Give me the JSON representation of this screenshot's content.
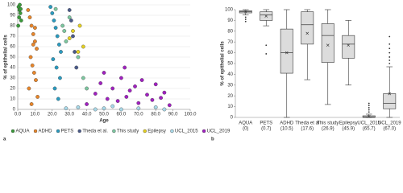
{
  "chart_data": [
    {
      "type": "scatter",
      "panel_label": "a",
      "x_label": "Age",
      "y_label": "% of epithelial cells",
      "xlim": [
        0,
        100
      ],
      "ylim": [
        0,
        100
      ],
      "xticks": [
        {
          "value": 0,
          "label": "0.0"
        },
        {
          "value": 10,
          "label": "10.0"
        },
        {
          "value": 20,
          "label": "20.0"
        },
        {
          "value": 30,
          "label": "30.0"
        },
        {
          "value": 40,
          "label": "40.0"
        },
        {
          "value": 50,
          "label": "50.0"
        },
        {
          "value": 60,
          "label": "60.0"
        },
        {
          "value": 70,
          "label": "70.0"
        },
        {
          "value": 80,
          "label": "80.0"
        },
        {
          "value": 90,
          "label": "90.0"
        },
        {
          "value": 100,
          "label": "100.0"
        }
      ],
      "yticks": [
        0,
        10,
        20,
        30,
        40,
        50,
        60,
        70,
        80,
        90,
        100
      ],
      "series": [
        {
          "name": "AQUA",
          "color": "#3a9a3a",
          "x": [
            0.5,
            1,
            1.5,
            0.8,
            1.2,
            2,
            0.3,
            1.7
          ],
          "y": [
            98,
            95,
            92,
            88,
            100,
            85,
            80,
            96
          ]
        },
        {
          "name": "ADHD",
          "color": "#e8862a",
          "x": [
            6,
            7,
            8,
            9,
            10,
            11,
            7.5,
            8.5,
            9.5,
            10.5,
            6.5,
            11.5,
            8,
            9,
            10
          ],
          "y": [
            95,
            88,
            80,
            72,
            65,
            58,
            50,
            42,
            35,
            28,
            20,
            12,
            5,
            62,
            78
          ]
        },
        {
          "name": "PETS",
          "color": "#2a9bc0",
          "x": [
            19,
            20,
            21,
            22,
            23,
            24,
            25,
            20.5,
            22.5,
            24.5,
            21.5,
            23.5
          ],
          "y": [
            98,
            92,
            85,
            78,
            70,
            62,
            55,
            48,
            40,
            30,
            20,
            10
          ]
        },
        {
          "name": "Theda et al.",
          "color": "#4a5a8a",
          "x": [
            30,
            31,
            32,
            33,
            34
          ],
          "y": [
            95,
            85,
            70,
            55,
            40
          ]
        },
        {
          "name": "This study",
          "color": "#7cc7a0",
          "x": [
            22,
            26,
            28,
            30,
            35,
            38,
            40,
            27
          ],
          "y": [
            96,
            80,
            65,
            88,
            50,
            30,
            20,
            75
          ]
        },
        {
          "name": "Epilepsy",
          "color": "#e5d020",
          "x": [
            30,
            32,
            35,
            36,
            38
          ],
          "y": [
            68,
            75,
            55,
            80,
            60
          ]
        },
        {
          "name": "UCL_2015",
          "color": "#a8d8e8",
          "x": [
            28,
            35,
            45,
            50,
            55,
            60,
            70,
            80,
            85
          ],
          "y": [
            1,
            2,
            0,
            1,
            3,
            0,
            1,
            2,
            0
          ]
        },
        {
          "name": "UCL_2019",
          "color": "#a020c0",
          "x": [
            40,
            45,
            48,
            52,
            55,
            58,
            60,
            63,
            65,
            68,
            70,
            72,
            75,
            78,
            80,
            83,
            85,
            88,
            50,
            62
          ],
          "y": [
            5,
            15,
            25,
            10,
            20,
            8,
            30,
            12,
            18,
            22,
            6,
            28,
            14,
            9,
            24,
            11,
            16,
            4,
            35,
            40
          ]
        }
      ]
    },
    {
      "type": "box",
      "panel_label": "b",
      "y_label": "% of epithelial cells",
      "color": "#dcdcdc",
      "ylim": [
        0,
        100
      ],
      "yticks": [
        0,
        10,
        20,
        30,
        40,
        50,
        60,
        70,
        80,
        90,
        100
      ],
      "categories": [
        "AQUA",
        "PETS",
        "ADHD",
        "Theda et al",
        "This study",
        "Epilepsy",
        "UCL_2015",
        "UCL_2019"
      ],
      "category_notes": [
        "(0)",
        "(0.7)",
        "(10.5)",
        "(17.6)",
        "(26.9)",
        "(45.9)",
        "(65.7)",
        "(67.0)"
      ],
      "boxes": [
        {
          "min": 95,
          "q1": 97,
          "median": 98,
          "q3": 99,
          "max": 100,
          "mean": 98,
          "outliers": [
            93,
            91,
            89
          ]
        },
        {
          "min": 85,
          "q1": 90,
          "median": 95,
          "q3": 98,
          "max": 100,
          "mean": 94,
          "outliers": [
            67,
            59
          ]
        },
        {
          "min": 0,
          "q1": 41,
          "median": 60,
          "q3": 82,
          "max": 100,
          "mean": 60,
          "outliers": []
        },
        {
          "min": 35,
          "q1": 68,
          "median": 86,
          "q3": 98,
          "max": 100,
          "mean": 78,
          "outliers": []
        },
        {
          "min": 12,
          "q1": 51,
          "median": 76,
          "q3": 87,
          "max": 100,
          "mean": 67,
          "outliers": []
        },
        {
          "min": 30,
          "q1": 55,
          "median": 68,
          "q3": 76,
          "max": 90,
          "mean": 67,
          "outliers": []
        },
        {
          "min": 0,
          "q1": 0,
          "median": 0.5,
          "q3": 1.5,
          "max": 3,
          "mean": 1,
          "outliers": [
            5,
            7,
            9,
            11,
            13
          ]
        },
        {
          "min": 0,
          "q1": 8,
          "median": 13,
          "q3": 22,
          "max": 47,
          "mean": 22,
          "outliers": [
            50,
            53,
            56,
            60,
            64,
            68,
            75
          ]
        }
      ]
    }
  ]
}
